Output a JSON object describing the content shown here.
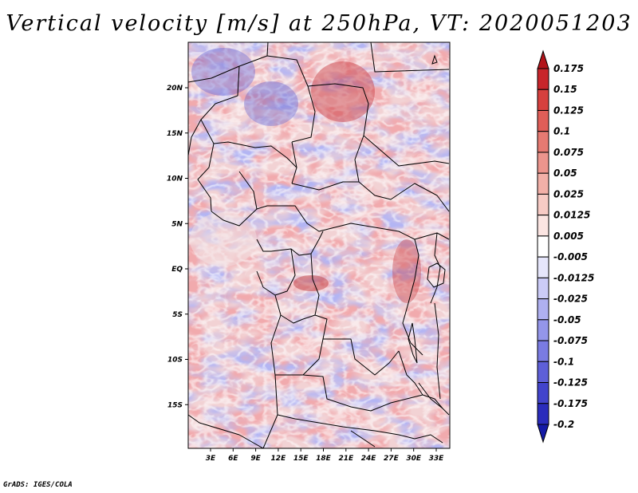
{
  "title": "Vertical velocity [m/s] at 250hPa, VT: 2020051203",
  "credit": "GrADS: IGES/COLA",
  "map": {
    "lat_labels": [
      "20N",
      "15N",
      "10N",
      "5N",
      "EQ",
      "5S",
      "10S",
      "15S"
    ],
    "lon_labels": [
      "3E",
      "6E",
      "9E",
      "12E",
      "15E",
      "18E",
      "21E",
      "24E",
      "27E",
      "30E",
      "33E"
    ]
  },
  "colorbar": {
    "levels": [
      "0.175",
      "0.15",
      "0.125",
      "0.1",
      "0.075",
      "0.05",
      "0.025",
      "0.0125",
      "0.005",
      "-0.005",
      "-0.0125",
      "-0.025",
      "-0.05",
      "-0.075",
      "-0.1",
      "-0.125",
      "-0.175",
      "-0.2"
    ],
    "colors": [
      "#b2141a",
      "#c8262b",
      "#d6403e",
      "#e05e58",
      "#e67a72",
      "#ec958d",
      "#f2b0a8",
      "#f7cbc5",
      "#fbe5e2",
      "#ffffff",
      "#e6e6fb",
      "#cbcbf7",
      "#afb0f0",
      "#9496ea",
      "#7a7be2",
      "#5e5fd8",
      "#4244cc",
      "#2a2cbc",
      "#141aa6"
    ]
  },
  "field": {
    "positive_color": "#e0666a",
    "negative_color": "#7c7fe6",
    "neutral_color": "#ffffff"
  }
}
